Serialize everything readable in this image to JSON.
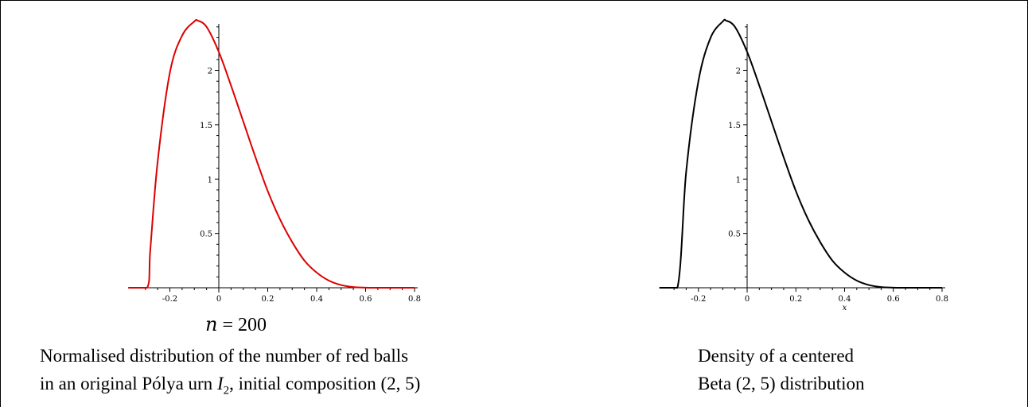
{
  "chart_data": [
    {
      "type": "line",
      "series": [
        {
          "color": "#dd0000",
          "x": [
            -0.37,
            -0.293,
            -0.28,
            -0.25,
            -0.2,
            -0.15,
            -0.1,
            -0.086,
            -0.05,
            0.0,
            0.05,
            0.1,
            0.15,
            0.2,
            0.25,
            0.3,
            0.35,
            0.4,
            0.45,
            0.5,
            0.55,
            0.6,
            0.65,
            0.7,
            0.8
          ],
          "y": [
            0,
            0,
            0.35,
            1.16,
            1.98,
            2.32,
            2.45,
            2.458,
            2.4,
            2.17,
            1.86,
            1.53,
            1.2,
            0.89,
            0.63,
            0.42,
            0.25,
            0.14,
            0.066,
            0.025,
            0.006,
            0.001,
            0,
            0,
            0
          ]
        }
      ],
      "xticks": [
        "-0.2",
        "0",
        "0.2",
        "0.4",
        "0.6",
        "0.8"
      ],
      "yticks": [
        "0.5",
        "1",
        "1.5",
        "2"
      ],
      "xlim": [
        -0.37,
        0.8
      ],
      "ylim": [
        0,
        2.46
      ],
      "annotation_label": "n = 200",
      "caption_line1": "Normalised distribution of the number of red balls",
      "caption_line2_pre": "in an original Pólya urn ",
      "caption_line2_sym": "I",
      "caption_line2_sub": "2",
      "caption_line2_post": ", initial composition (2, 5)"
    },
    {
      "type": "line",
      "series": [
        {
          "color": "#000000",
          "x": [
            -0.36,
            -0.286,
            -0.25,
            -0.2,
            -0.15,
            -0.1,
            -0.086,
            -0.05,
            0.0,
            0.05,
            0.1,
            0.15,
            0.2,
            0.25,
            0.3,
            0.35,
            0.4,
            0.45,
            0.5,
            0.55,
            0.6,
            0.65,
            0.7,
            0.8
          ],
          "y": [
            0,
            0,
            1.07,
            1.9,
            2.3,
            2.45,
            2.458,
            2.4,
            2.17,
            1.86,
            1.53,
            1.2,
            0.89,
            0.63,
            0.42,
            0.25,
            0.14,
            0.066,
            0.025,
            0.006,
            0.001,
            0,
            0,
            0
          ]
        }
      ],
      "xticks": [
        "-0.2",
        "0",
        "0.2",
        "0.4",
        "0.6",
        "0.8"
      ],
      "yticks": [
        "0.5",
        "1",
        "1.5",
        "2"
      ],
      "xlim": [
        -0.36,
        0.8
      ],
      "ylim": [
        0,
        2.46
      ],
      "xlabel": "x",
      "caption_line1": "Density of a centered",
      "caption_line2": "Beta (2, 5) distribution"
    }
  ]
}
